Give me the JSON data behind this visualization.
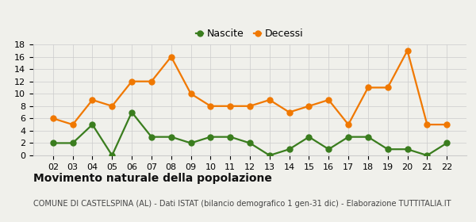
{
  "years": [
    "02",
    "03",
    "04",
    "05",
    "06",
    "07",
    "08",
    "09",
    "10",
    "11",
    "12",
    "13",
    "14",
    "15",
    "16",
    "17",
    "18",
    "19",
    "20",
    "21",
    "22"
  ],
  "nascite": [
    2,
    2,
    5,
    0,
    7,
    3,
    3,
    2,
    3,
    3,
    2,
    0,
    1,
    3,
    1,
    3,
    3,
    1,
    1,
    0,
    2
  ],
  "decessi": [
    6,
    5,
    9,
    8,
    12,
    12,
    16,
    10,
    8,
    8,
    8,
    9,
    7,
    8,
    9,
    5,
    11,
    11,
    17,
    5,
    5
  ],
  "nascite_color": "#3a7d1e",
  "decessi_color": "#f07800",
  "bg_color": "#f0f0eb",
  "grid_color": "#cccccc",
  "ylim": [
    0,
    18
  ],
  "yticks": [
    0,
    2,
    4,
    6,
    8,
    10,
    12,
    14,
    16,
    18
  ],
  "legend_labels": [
    "Nascite",
    "Decessi"
  ],
  "title": "Movimento naturale della popolazione",
  "subtitle": "COMUNE DI CASTELSPINA (AL) - Dati ISTAT (bilancio demografico 1 gen-31 dic) - Elaborazione TUTTITALIA.IT",
  "title_fontsize": 10,
  "subtitle_fontsize": 7,
  "marker_size": 5,
  "line_width": 1.6,
  "tick_fontsize": 8,
  "legend_fontsize": 9
}
